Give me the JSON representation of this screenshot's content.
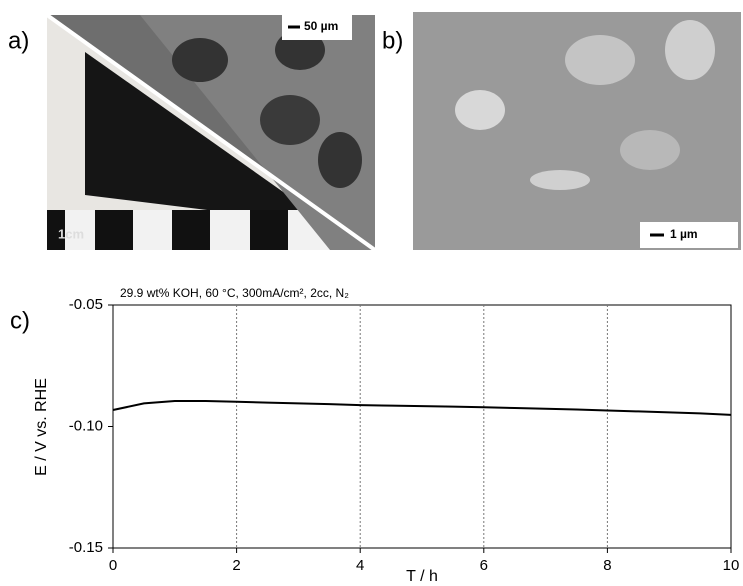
{
  "panels": {
    "a": {
      "label": "a)",
      "scale_bar": "50 µm",
      "ruler_label": "1cm"
    },
    "b": {
      "label": "b)",
      "scale_bar": "1 µm"
    },
    "c": {
      "label": "c)"
    }
  },
  "chart_data": {
    "type": "line",
    "annotation": "29.9 wt% KOH, 60 °C, 300mA/cm², 2cc, N₂",
    "x_label": "T / h",
    "y_label": "E / V vs. RHE",
    "x": [
      0,
      0.5,
      1,
      1.5,
      2,
      2.5,
      3,
      3.5,
      4,
      4.5,
      5,
      5.5,
      6,
      6.5,
      7,
      7.5,
      8,
      8.5,
      9,
      9.5,
      10
    ],
    "series": [
      {
        "color": "#000000",
        "values": [
          -0.0932,
          -0.0905,
          -0.0895,
          -0.0895,
          -0.0898,
          -0.0902,
          -0.0905,
          -0.0908,
          -0.0912,
          -0.0914,
          -0.0916,
          -0.0918,
          -0.0921,
          -0.0924,
          -0.0927,
          -0.093,
          -0.0934,
          -0.0938,
          -0.0942,
          -0.0946,
          -0.0952
        ]
      }
    ],
    "xlim": [
      0,
      10
    ],
    "xticks": [
      0,
      2,
      4,
      6,
      8,
      10
    ],
    "ylim": [
      -0.15,
      -0.05
    ],
    "yticks": [
      -0.15,
      {
        "value": -0.1,
        "label": "-0.10"
      },
      -0.05
    ],
    "grid": "x"
  }
}
